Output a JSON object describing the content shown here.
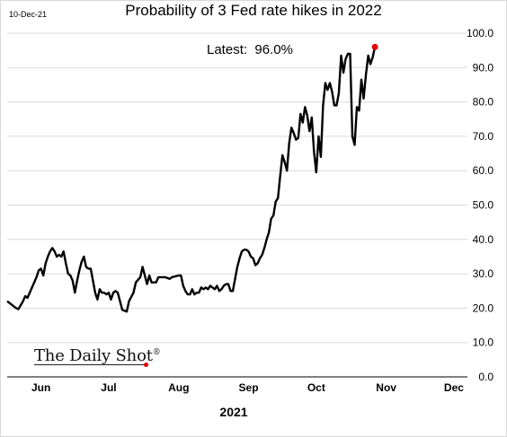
{
  "header": {
    "date_stamp": "10-Dec-21",
    "title": "Probability of 3 Fed rate hikes in 2022"
  },
  "annotation": {
    "latest": "Latest:  96.0%"
  },
  "watermark": {
    "text": "The Daily Shot",
    "mark": "®"
  },
  "chart_data": {
    "type": "line",
    "title": "Probability of 3 Fed rate hikes in 2022",
    "xlabel": "2021",
    "ylabel": "",
    "ylim": [
      0,
      100
    ],
    "y_ticks": [
      "0.0",
      "10.0",
      "20.0",
      "30.0",
      "40.0",
      "50.0",
      "60.0",
      "70.0",
      "80.0",
      "90.0",
      "100.0"
    ],
    "y_axis_position": "right",
    "grid": "horizontal",
    "x_ticks": [
      {
        "label": "Jun",
        "day": 15
      },
      {
        "label": "Jul",
        "day": 45
      },
      {
        "label": "Aug",
        "day": 76
      },
      {
        "label": "Sep",
        "day": 107
      },
      {
        "label": "Oct",
        "day": 137
      },
      {
        "label": "Nov",
        "day": 168
      },
      {
        "label": "Dec",
        "day": 198
      }
    ],
    "x_range": [
      0,
      204
    ],
    "line_color": "#000000",
    "marker_color": "#e00000",
    "series": [
      {
        "values": [
          [
            0,
            22
          ],
          [
            2,
            21
          ],
          [
            4,
            20
          ],
          [
            5,
            19.7
          ],
          [
            7,
            22
          ],
          [
            8,
            23.5
          ],
          [
            9,
            23
          ],
          [
            11,
            26
          ],
          [
            12,
            27.5
          ],
          [
            13,
            29
          ],
          [
            14,
            31
          ],
          [
            15,
            31.5
          ],
          [
            16,
            29.5
          ],
          [
            17,
            33
          ],
          [
            18,
            35
          ],
          [
            19,
            36.5
          ],
          [
            20,
            37.5
          ],
          [
            21,
            36.5
          ],
          [
            22,
            35
          ],
          [
            23,
            35.5
          ],
          [
            24,
            35
          ],
          [
            25,
            36.5
          ],
          [
            26,
            33
          ],
          [
            27,
            30
          ],
          [
            28,
            29.5
          ],
          [
            29,
            28
          ],
          [
            30,
            24.5
          ],
          [
            31,
            28
          ],
          [
            32,
            31
          ],
          [
            33,
            33.5
          ],
          [
            34,
            35
          ],
          [
            35,
            32
          ],
          [
            36,
            31.5
          ],
          [
            37,
            31.5
          ],
          [
            38,
            28
          ],
          [
            39,
            24.5
          ],
          [
            40,
            22.5
          ],
          [
            41,
            25.5
          ],
          [
            42,
            24.5
          ],
          [
            43,
            24.5
          ],
          [
            44,
            24
          ],
          [
            45,
            24.5
          ],
          [
            46,
            22.5
          ],
          [
            47,
            24.5
          ],
          [
            48,
            25
          ],
          [
            49,
            24.5
          ],
          [
            50,
            22
          ],
          [
            51,
            19.5
          ],
          [
            53,
            19
          ],
          [
            54,
            22
          ],
          [
            56,
            24.5
          ],
          [
            57,
            27.5
          ],
          [
            59,
            29
          ],
          [
            60,
            32
          ],
          [
            61,
            29.5
          ],
          [
            62,
            27
          ],
          [
            63,
            29.5
          ],
          [
            64,
            27.5
          ],
          [
            66,
            27.5
          ],
          [
            67,
            29
          ],
          [
            70,
            29
          ],
          [
            72,
            28.5
          ],
          [
            73,
            29
          ],
          [
            76,
            29.5
          ],
          [
            77,
            29.5
          ],
          [
            78,
            26.5
          ],
          [
            79,
            25
          ],
          [
            80,
            24
          ],
          [
            81,
            24
          ],
          [
            82,
            25.5
          ],
          [
            83,
            24
          ],
          [
            84,
            24.5
          ],
          [
            85,
            24.5
          ],
          [
            86,
            26
          ],
          [
            87,
            25.5
          ],
          [
            88,
            26
          ],
          [
            89,
            25.5
          ],
          [
            90,
            26.5
          ],
          [
            91,
            26
          ],
          [
            92,
            25.5
          ],
          [
            93,
            26.5
          ],
          [
            94,
            25
          ],
          [
            95,
            25.5
          ],
          [
            96,
            26.5
          ],
          [
            97,
            27
          ],
          [
            98,
            27
          ],
          [
            99,
            25
          ],
          [
            100,
            25
          ],
          [
            101,
            28.5
          ],
          [
            102,
            32
          ],
          [
            103,
            34.5
          ],
          [
            104,
            36.5
          ],
          [
            105,
            37
          ],
          [
            106,
            37
          ],
          [
            107,
            36.5
          ],
          [
            108,
            35
          ],
          [
            109,
            34.5
          ],
          [
            110,
            32.5
          ],
          [
            111,
            33
          ],
          [
            112,
            34.5
          ],
          [
            113,
            35.5
          ],
          [
            114,
            37.5
          ],
          [
            115,
            40
          ],
          [
            116,
            42
          ],
          [
            117,
            46
          ],
          [
            118,
            47
          ],
          [
            119,
            51
          ],
          [
            120,
            52
          ],
          [
            121,
            58.5
          ],
          [
            122,
            64.5
          ],
          [
            123,
            62.5
          ],
          [
            124,
            60
          ],
          [
            125,
            68
          ],
          [
            126,
            72.5
          ],
          [
            127,
            71
          ],
          [
            128,
            69
          ],
          [
            129,
            69.5
          ],
          [
            130,
            76.5
          ],
          [
            131,
            74
          ],
          [
            132,
            78.5
          ],
          [
            133,
            76
          ],
          [
            134,
            71.5
          ],
          [
            135,
            75.5
          ],
          [
            136,
            65.5
          ],
          [
            137,
            59.5
          ],
          [
            138,
            70
          ],
          [
            139,
            64
          ],
          [
            140,
            79
          ],
          [
            141,
            85.5
          ],
          [
            142,
            83.5
          ],
          [
            143,
            85.5
          ],
          [
            144,
            83
          ],
          [
            145,
            79
          ],
          [
            146,
            79
          ],
          [
            147,
            82.5
          ],
          [
            148,
            93.5
          ],
          [
            149,
            88.5
          ],
          [
            150,
            92.5
          ],
          [
            151,
            94
          ],
          [
            152,
            94
          ],
          [
            153,
            70
          ],
          [
            154,
            67.5
          ],
          [
            155,
            78.5
          ],
          [
            156,
            77.5
          ],
          [
            157,
            86.5
          ],
          [
            158,
            81
          ],
          [
            159,
            88
          ],
          [
            160,
            93.5
          ],
          [
            161,
            91
          ],
          [
            162,
            93
          ],
          [
            163,
            96
          ]
        ]
      }
    ]
  }
}
